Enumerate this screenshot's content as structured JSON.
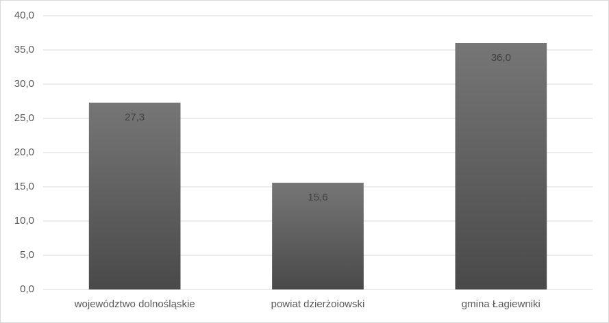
{
  "chart_data": {
    "type": "bar",
    "categories": [
      "województwo dolnośląskie",
      "powiat dzierżoiowski",
      "gmina Łagiewniki"
    ],
    "values": [
      27.3,
      15.6,
      36.0
    ],
    "value_labels": [
      "27,3",
      "15,6",
      "36,0"
    ],
    "color": "#767676",
    "ylim": [
      0,
      40
    ],
    "yticks": [
      {
        "value": 0,
        "label": "0,0"
      },
      {
        "value": 5,
        "label": "5,0"
      },
      {
        "value": 10,
        "label": "10,0"
      },
      {
        "value": 15,
        "label": "15,0"
      },
      {
        "value": 20,
        "label": "20,0"
      },
      {
        "value": 25,
        "label": "25,0"
      },
      {
        "value": 30,
        "label": "30,0"
      },
      {
        "value": 35,
        "label": "35,0"
      },
      {
        "value": 40,
        "label": "40,0"
      }
    ],
    "grid": true
  }
}
